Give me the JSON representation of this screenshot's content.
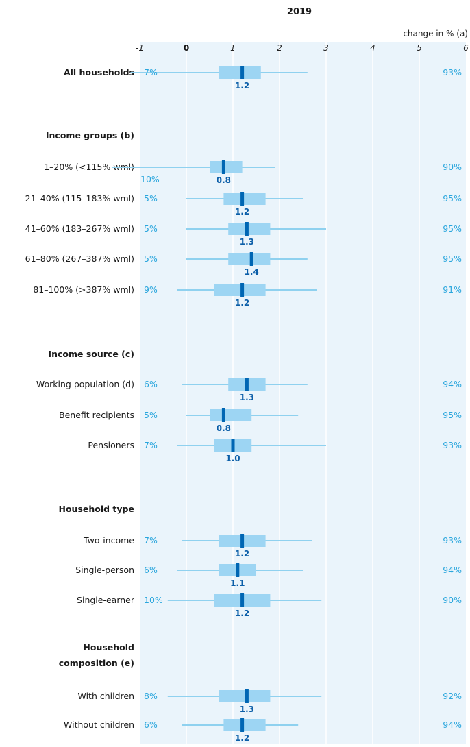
{
  "colors": {
    "panel": "#eaf4fb",
    "gridline": "#ffffff",
    "whisker": "#8fd1ef",
    "box": "#9dd5f3",
    "median": "#0066b3",
    "median_label": "#0b5ea8",
    "percent": "#2aa6dd"
  },
  "chart_data": {
    "type": "box",
    "title": "2019",
    "unit_label": "change in % (a)",
    "xlim": [
      -1,
      6
    ],
    "ticks": [
      {
        "value": -1,
        "label": "-1"
      },
      {
        "value": 0,
        "label": "0"
      },
      {
        "value": 1,
        "label": "1"
      },
      {
        "value": 2,
        "label": "2"
      },
      {
        "value": 3,
        "label": "3"
      },
      {
        "value": 4,
        "label": "4"
      },
      {
        "value": 5,
        "label": "5"
      },
      {
        "value": 6,
        "label": "6"
      }
    ],
    "groups": [
      {
        "heading": "",
        "rows": [
          {
            "label": "All households",
            "bold": true,
            "left_pct": "7%",
            "right_pct": "93%",
            "whisker": [
              -1.2,
              2.6
            ],
            "box": [
              0.7,
              1.6
            ],
            "median": 1.2,
            "median_label": "1.2"
          }
        ]
      },
      {
        "heading": "Income groups (b)",
        "rows": [
          {
            "label": "1–20% (<115% wml)",
            "left_pct": "10%",
            "right_pct": "90%",
            "whisker": [
              -1.6,
              1.9
            ],
            "box": [
              0.5,
              1.2
            ],
            "median": 0.8,
            "median_label": "0.8"
          },
          {
            "label": "21–40% (115–183% wml)",
            "left_pct": "5%",
            "right_pct": "95%",
            "whisker": [
              0.0,
              2.5
            ],
            "box": [
              0.8,
              1.7
            ],
            "median": 1.2,
            "median_label": "1.2"
          },
          {
            "label": "41–60% (183–267% wml)",
            "left_pct": "5%",
            "right_pct": "95%",
            "whisker": [
              0.0,
              3.0
            ],
            "box": [
              0.9,
              1.8
            ],
            "median": 1.3,
            "median_label": "1.3"
          },
          {
            "label": "61–80% (267–387% wml)",
            "left_pct": "5%",
            "right_pct": "95%",
            "whisker": [
              0.0,
              2.6
            ],
            "box": [
              0.9,
              1.8
            ],
            "median": 1.4,
            "median_label": "1.4"
          },
          {
            "label": "81–100% (>387% wml)",
            "left_pct": "9%",
            "right_pct": "91%",
            "whisker": [
              -0.2,
              2.8
            ],
            "box": [
              0.6,
              1.7
            ],
            "median": 1.2,
            "median_label": "1.2"
          }
        ]
      },
      {
        "heading": "Income source (c)",
        "rows": [
          {
            "label": "Working population (d)",
            "left_pct": "6%",
            "right_pct": "94%",
            "whisker": [
              -0.1,
              2.6
            ],
            "box": [
              0.9,
              1.7
            ],
            "median": 1.3,
            "median_label": "1.3"
          },
          {
            "label": "Benefit recipients",
            "left_pct": "5%",
            "right_pct": "95%",
            "whisker": [
              0.0,
              2.4
            ],
            "box": [
              0.5,
              1.4
            ],
            "median": 0.8,
            "median_label": "0.8"
          },
          {
            "label": "Pensioners",
            "left_pct": "7%",
            "right_pct": "93%",
            "whisker": [
              -0.2,
              3.0
            ],
            "box": [
              0.6,
              1.4
            ],
            "median": 1.0,
            "median_label": "1.0"
          }
        ]
      },
      {
        "heading": "Household type",
        "rows": [
          {
            "label": "Two-income",
            "left_pct": "7%",
            "right_pct": "93%",
            "whisker": [
              -0.1,
              2.7
            ],
            "box": [
              0.7,
              1.7
            ],
            "median": 1.2,
            "median_label": "1.2"
          },
          {
            "label": "Single-person",
            "left_pct": "6%",
            "right_pct": "94%",
            "whisker": [
              -0.2,
              2.5
            ],
            "box": [
              0.7,
              1.5
            ],
            "median": 1.1,
            "median_label": "1.1"
          },
          {
            "label": "Single-earner",
            "left_pct": "10%",
            "right_pct": "90%",
            "whisker": [
              -0.4,
              2.9
            ],
            "box": [
              0.6,
              1.8
            ],
            "median": 1.2,
            "median_label": "1.2"
          }
        ]
      },
      {
        "heading": "Household composition (e)",
        "heading_lines": [
          "Household",
          "composition (e)"
        ],
        "rows": [
          {
            "label": "With children",
            "left_pct": "8%",
            "right_pct": "92%",
            "whisker": [
              -0.4,
              2.9
            ],
            "box": [
              0.7,
              1.8
            ],
            "median": 1.3,
            "median_label": "1.3"
          },
          {
            "label": "Without children",
            "left_pct": "6%",
            "right_pct": "94%",
            "whisker": [
              -0.1,
              2.4
            ],
            "box": [
              0.8,
              1.7
            ],
            "median": 1.2,
            "median_label": "1.2"
          }
        ]
      }
    ]
  }
}
